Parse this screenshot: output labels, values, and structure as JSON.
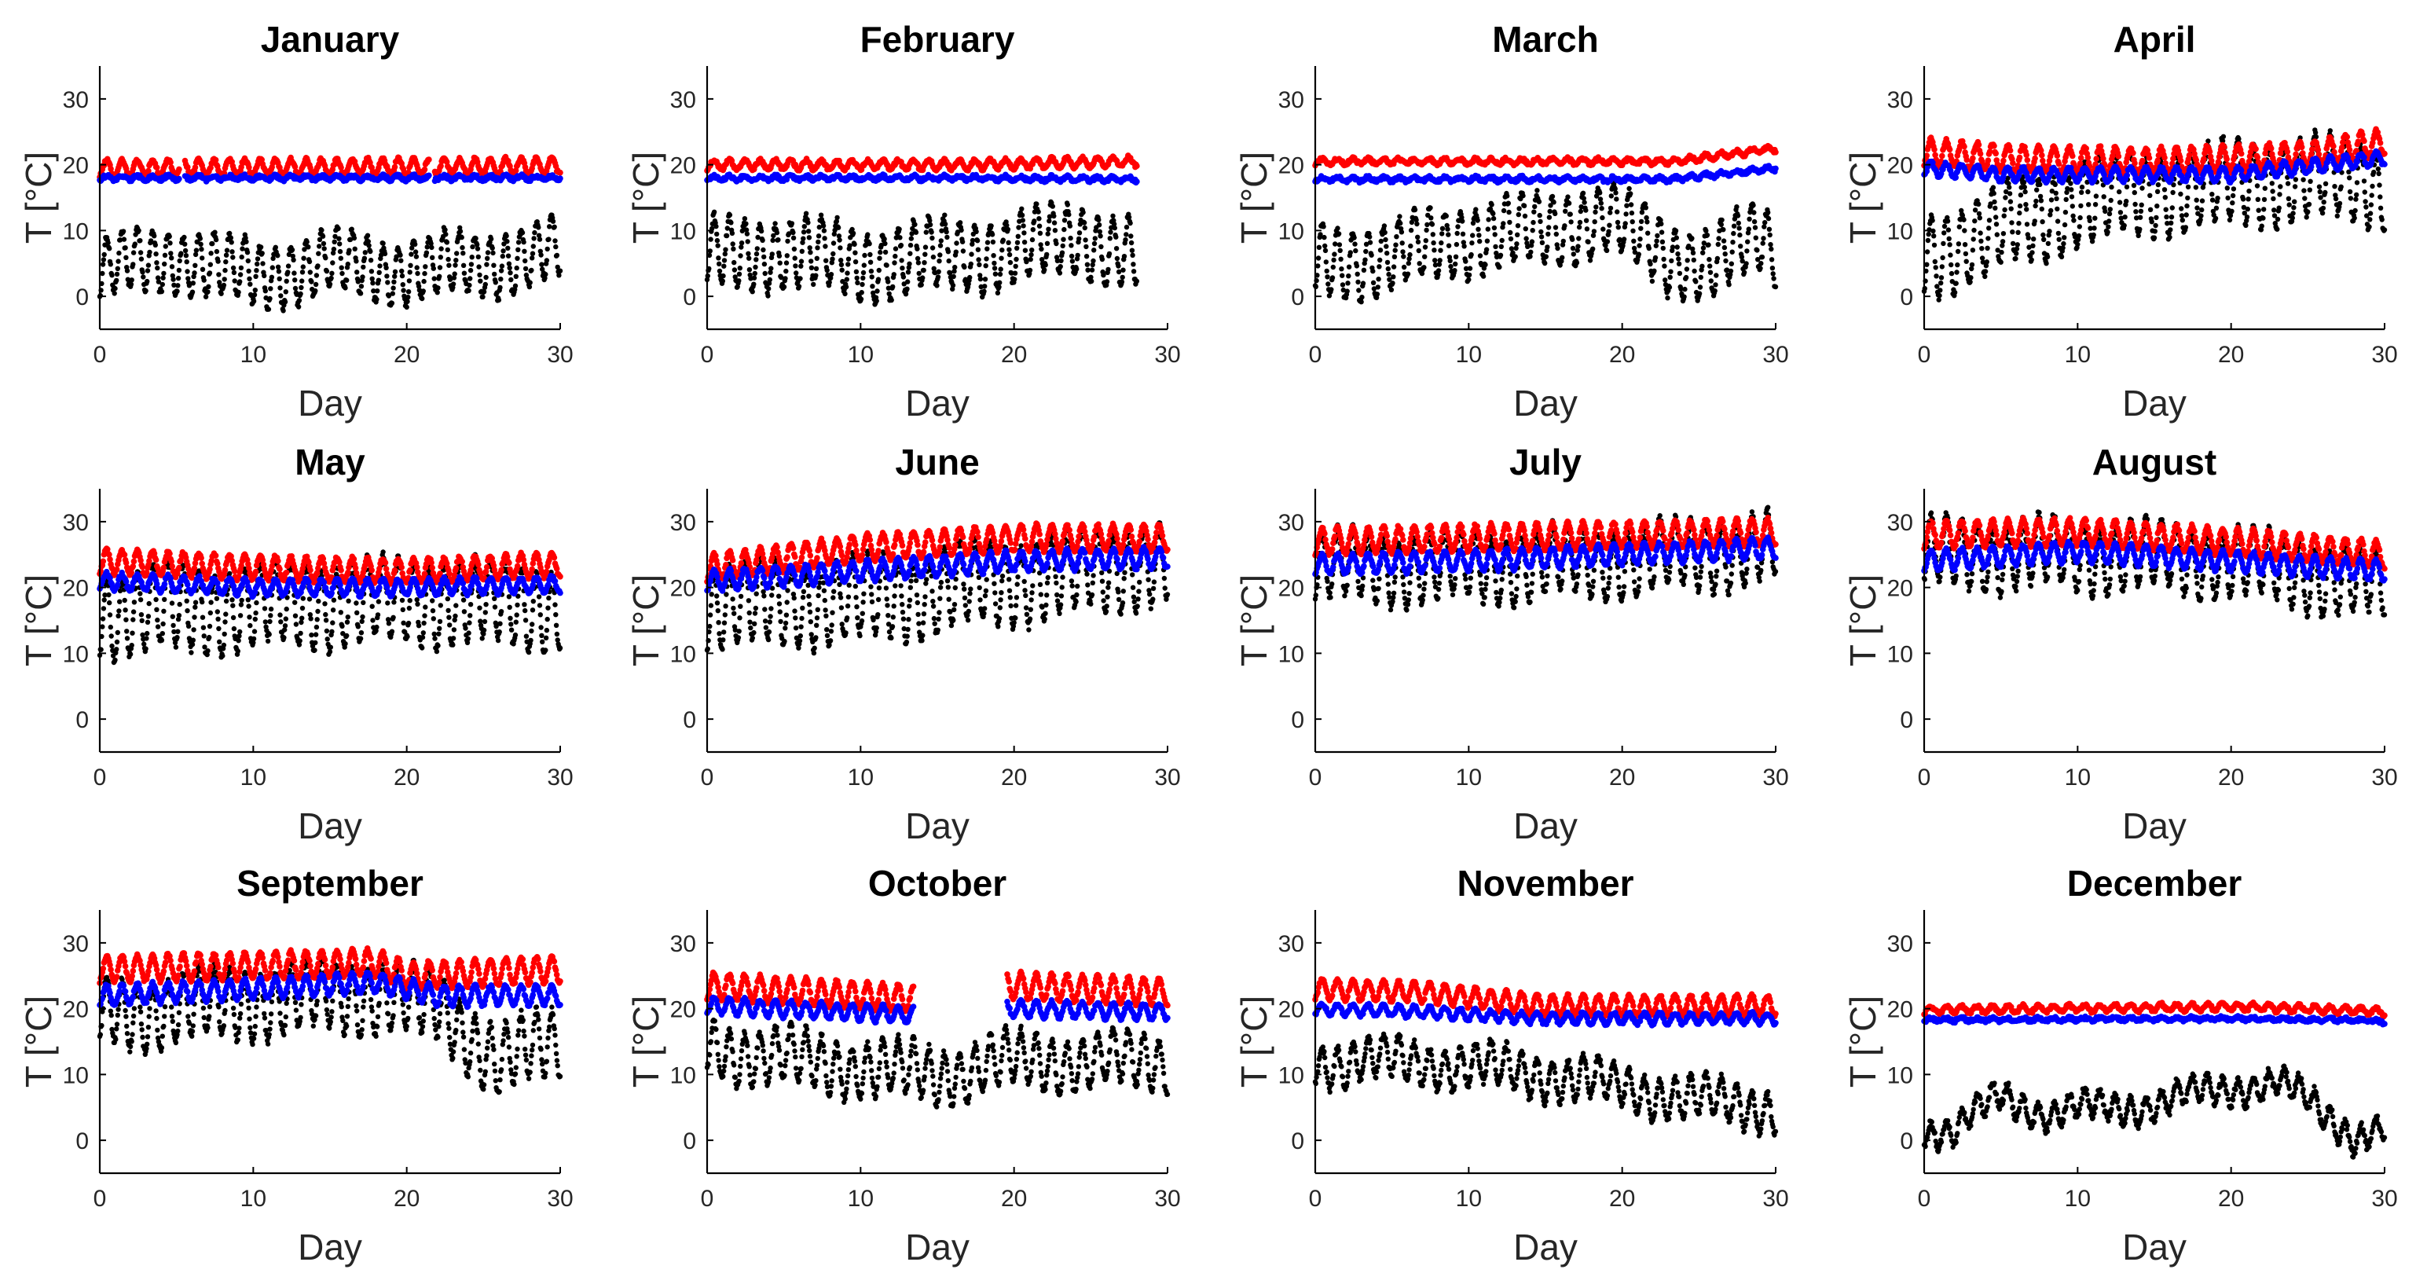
{
  "figure": {
    "layout": "3x4 grid of scatter subplots",
    "series_colors": {
      "upper_indoor": "#ff0000",
      "lower_indoor": "#0000ff",
      "outdoor": "#000000"
    }
  },
  "chart_data": [
    {
      "type": "scatter",
      "title": "January",
      "xlabel": "Day",
      "ylabel": "T [°C]",
      "xlim": [
        0,
        30
      ],
      "ylim": [
        -5,
        35
      ],
      "xticks": [
        0,
        10,
        20,
        30
      ],
      "yticks": [
        0,
        10,
        20,
        30
      ],
      "grid": false,
      "series": [
        {
          "color": "#ff0000",
          "trend": [
            [
              0,
              19.5
            ],
            [
              30,
              19.8
            ]
          ],
          "amp": 1.2,
          "gaps": [
            [
              5.2,
              5.5
            ],
            [
              21.5,
              21.8
            ]
          ]
        },
        {
          "color": "#0000ff",
          "trend": [
            [
              0,
              18.0
            ],
            [
              30,
              18.0
            ]
          ],
          "amp": 0.3,
          "gaps": [
            [
              5.2,
              5.5
            ],
            [
              21.5,
              21.8
            ]
          ]
        },
        {
          "color": "#000000",
          "trend": [
            [
              0,
              4
            ],
            [
              5,
              6
            ],
            [
              10,
              3
            ],
            [
              15,
              5
            ],
            [
              20,
              4
            ],
            [
              25,
              5
            ],
            [
              30,
              7
            ]
          ],
          "amp": 4.5
        }
      ]
    },
    {
      "type": "scatter",
      "title": "February",
      "xlabel": "Day",
      "ylabel": "T [°C]",
      "xlim": [
        0,
        30
      ],
      "ylim": [
        -5,
        35
      ],
      "xticks": [
        0,
        10,
        20,
        30
      ],
      "yticks": [
        0,
        10,
        20,
        30
      ],
      "grid": false,
      "series": [
        {
          "color": "#ff0000",
          "trend": [
            [
              0,
              20.0
            ],
            [
              16.5,
              20.0
            ],
            [
              28,
              20.5
            ]
          ],
          "amp": 0.7
        },
        {
          "color": "#0000ff",
          "trend": [
            [
              0,
              18.0
            ],
            [
              16.5,
              18.0
            ],
            [
              28,
              17.8
            ]
          ],
          "amp": 0.3
        },
        {
          "color": "#000000",
          "trend": [
            [
              0,
              6
            ],
            [
              5,
              7
            ],
            [
              10,
              5
            ],
            [
              15,
              6
            ],
            [
              20,
              7
            ],
            [
              24,
              9
            ],
            [
              28,
              6
            ]
          ],
          "amp": 5
        }
      ]
    },
    {
      "type": "scatter",
      "title": "March",
      "xlabel": "Day",
      "ylabel": "T [°C]",
      "xlim": [
        0,
        30
      ],
      "ylim": [
        -5,
        35
      ],
      "xticks": [
        0,
        10,
        20,
        30
      ],
      "yticks": [
        0,
        10,
        20,
        30
      ],
      "grid": false,
      "series": [
        {
          "color": "#ff0000",
          "trend": [
            [
              0,
              20.5
            ],
            [
              23.3,
              20.5
            ],
            [
              30,
              22.5
            ]
          ],
          "amp": 0.4
        },
        {
          "color": "#0000ff",
          "trend": [
            [
              0,
              17.8
            ],
            [
              23.3,
              17.8
            ],
            [
              30,
              19.5
            ]
          ],
          "amp": 0.3
        },
        {
          "color": "#000000",
          "trend": [
            [
              0,
              5
            ],
            [
              5,
              6
            ],
            [
              10,
              9
            ],
            [
              15,
              10
            ],
            [
              19,
              12
            ],
            [
              23,
              6
            ],
            [
              26,
              5
            ],
            [
              29,
              9
            ],
            [
              30,
              7
            ]
          ],
          "amp": 5
        }
      ]
    },
    {
      "type": "scatter",
      "title": "April",
      "xlabel": "Day",
      "ylabel": "T [°C]",
      "xlim": [
        0,
        30
      ],
      "ylim": [
        -5,
        35
      ],
      "xticks": [
        0,
        10,
        20,
        30
      ],
      "yticks": [
        0,
        10,
        20,
        30
      ],
      "grid": false,
      "series": [
        {
          "color": "#ff0000",
          "trend": [
            [
              0,
              22
            ],
            [
              5,
              21
            ],
            [
              15,
              20.5
            ],
            [
              25,
              21.5
            ],
            [
              30,
              23.5
            ]
          ],
          "amp": 2.0
        },
        {
          "color": "#0000ff",
          "trend": [
            [
              0,
              19.5
            ],
            [
              5,
              18.5
            ],
            [
              20,
              18.5
            ],
            [
              30,
              21
            ]
          ],
          "amp": 1.0
        },
        {
          "color": "#000000",
          "trend": [
            [
              0,
              6
            ],
            [
              5,
              10
            ],
            [
              10,
              14
            ],
            [
              15,
              16
            ],
            [
              20,
              17
            ],
            [
              25,
              18
            ],
            [
              30,
              17
            ]
          ],
          "amp": 6
        }
      ]
    },
    {
      "type": "scatter",
      "title": "May",
      "xlabel": "Day",
      "ylabel": "T [°C]",
      "xlim": [
        0,
        30
      ],
      "ylim": [
        -5,
        35
      ],
      "xticks": [
        0,
        10,
        20,
        30
      ],
      "yticks": [
        0,
        10,
        20,
        30
      ],
      "grid": false,
      "series": [
        {
          "color": "#ff0000",
          "trend": [
            [
              0,
              24
            ],
            [
              10,
              23
            ],
            [
              20,
              22.5
            ],
            [
              30,
              23.5
            ]
          ],
          "amp": 1.8
        },
        {
          "color": "#0000ff",
          "trend": [
            [
              0,
              21
            ],
            [
              10,
              20
            ],
            [
              20,
              20
            ],
            [
              30,
              20.5
            ]
          ],
          "amp": 1.2
        },
        {
          "color": "#000000",
          "trend": [
            [
              0,
              16
            ],
            [
              10,
              17
            ],
            [
              20,
              18
            ],
            [
              30,
              17
            ]
          ],
          "amp": 6
        }
      ]
    },
    {
      "type": "scatter",
      "title": "June",
      "xlabel": "Day",
      "ylabel": "T [°C]",
      "xlim": [
        0,
        30
      ],
      "ylim": [
        -5,
        35
      ],
      "xticks": [
        0,
        10,
        20,
        30
      ],
      "yticks": [
        0,
        10,
        20,
        30
      ],
      "grid": false,
      "series": [
        {
          "color": "#ff0000",
          "trend": [
            [
              0,
              23
            ],
            [
              10,
              26
            ],
            [
              20,
              27.5
            ],
            [
              30,
              27.5
            ]
          ],
          "amp": 2.0
        },
        {
          "color": "#0000ff",
          "trend": [
            [
              0,
              21
            ],
            [
              10,
              22.5
            ],
            [
              20,
              24
            ],
            [
              30,
              24.5
            ]
          ],
          "amp": 1.5
        },
        {
          "color": "#000000",
          "trend": [
            [
              0,
              17
            ],
            [
              10,
              18
            ],
            [
              20,
              21
            ],
            [
              30,
              24
            ]
          ],
          "amp": 6
        }
      ]
    },
    {
      "type": "scatter",
      "title": "July",
      "xlabel": "Day",
      "ylabel": "T [°C]",
      "xlim": [
        0,
        30
      ],
      "ylim": [
        -5,
        35
      ],
      "xticks": [
        0,
        10,
        20,
        30
      ],
      "yticks": [
        0,
        10,
        20,
        30
      ],
      "grid": false,
      "series": [
        {
          "color": "#ff0000",
          "trend": [
            [
              0,
              27
            ],
            [
              10,
              27.5
            ],
            [
              20,
              28
            ],
            [
              30,
              28.5
            ]
          ],
          "amp": 2.0
        },
        {
          "color": "#0000ff",
          "trend": [
            [
              0,
              23.5
            ],
            [
              10,
              24
            ],
            [
              20,
              25
            ],
            [
              30,
              26
            ]
          ],
          "amp": 1.5
        },
        {
          "color": "#000000",
          "trend": [
            [
              0,
              23
            ],
            [
              10,
              23
            ],
            [
              20,
              24
            ],
            [
              30,
              26
            ]
          ],
          "amp": 5
        }
      ]
    },
    {
      "type": "scatter",
      "title": "August",
      "xlabel": "Day",
      "ylabel": "T [°C]",
      "xlim": [
        0,
        30
      ],
      "ylim": [
        -5,
        35
      ],
      "xticks": [
        0,
        10,
        20,
        30
      ],
      "yticks": [
        0,
        10,
        20,
        30
      ],
      "grid": false,
      "series": [
        {
          "color": "#ff0000",
          "trend": [
            [
              0,
              28
            ],
            [
              10,
              28.5
            ],
            [
              20,
              27
            ],
            [
              30,
              25
            ]
          ],
          "amp": 2.0
        },
        {
          "color": "#0000ff",
          "trend": [
            [
              0,
              24
            ],
            [
              10,
              25.5
            ],
            [
              20,
              24
            ],
            [
              30,
              22.5
            ]
          ],
          "amp": 1.5
        },
        {
          "color": "#000000",
          "trend": [
            [
              0,
              25
            ],
            [
              10,
              25
            ],
            [
              20,
              24
            ],
            [
              30,
              20
            ]
          ],
          "amp": 5
        }
      ]
    },
    {
      "type": "scatter",
      "title": "September",
      "xlabel": "Day",
      "ylabel": "T [°C]",
      "xlim": [
        0,
        30
      ],
      "ylim": [
        -5,
        35
      ],
      "xticks": [
        0,
        10,
        20,
        30
      ],
      "yticks": [
        0,
        10,
        20,
        30
      ],
      "grid": false,
      "series": [
        {
          "color": "#ff0000",
          "trend": [
            [
              0,
              26
            ],
            [
              10,
              26.5
            ],
            [
              18,
              27
            ],
            [
              20,
              25
            ],
            [
              30,
              26
            ]
          ],
          "amp": 2.0
        },
        {
          "color": "#0000ff",
          "trend": [
            [
              0,
              22
            ],
            [
              10,
              23
            ],
            [
              18,
              24
            ],
            [
              22,
              22
            ],
            [
              30,
              22
            ]
          ],
          "amp": 1.5
        },
        {
          "color": "#000000",
          "trend": [
            [
              0,
              19
            ],
            [
              10,
              21
            ],
            [
              18,
              22
            ],
            [
              22,
              20
            ],
            [
              26,
              12
            ],
            [
              30,
              15
            ]
          ],
          "amp": 5
        }
      ]
    },
    {
      "type": "scatter",
      "title": "October",
      "xlabel": "Day",
      "ylabel": "T [°C]",
      "xlim": [
        0,
        30
      ],
      "ylim": [
        -5,
        35
      ],
      "xticks": [
        0,
        10,
        20,
        30
      ],
      "yticks": [
        0,
        10,
        20,
        30
      ],
      "grid": false,
      "series": [
        {
          "color": "#ff0000",
          "trend": [
            [
              0,
              23.5
            ],
            [
              13.5,
              21.5
            ],
            [
              19.5,
              23.5
            ],
            [
              30,
              22.5
            ]
          ],
          "amp": 2.0,
          "gaps": [
            [
              13.5,
              19.5
            ]
          ]
        },
        {
          "color": "#0000ff",
          "trend": [
            [
              0,
              20.5
            ],
            [
              13.5,
              19
            ],
            [
              19.5,
              20
            ],
            [
              30,
              19.5
            ]
          ],
          "amp": 1.2,
          "gaps": [
            [
              13.5,
              19.5
            ]
          ]
        },
        {
          "color": "#000000",
          "trend": [
            [
              0,
              14
            ],
            [
              10,
              11
            ],
            [
              15,
              10
            ],
            [
              20,
              12
            ],
            [
              30,
              12
            ]
          ],
          "amp": 4
        }
      ]
    },
    {
      "type": "scatter",
      "title": "November",
      "xlabel": "Day",
      "ylabel": "T [°C]",
      "xlim": [
        0,
        30
      ],
      "ylim": [
        -5,
        35
      ],
      "xticks": [
        0,
        10,
        20,
        30
      ],
      "yticks": [
        0,
        10,
        20,
        30
      ],
      "grid": false,
      "series": [
        {
          "color": "#ff0000",
          "trend": [
            [
              0,
              23
            ],
            [
              7,
              22.5
            ],
            [
              15,
              20.5
            ],
            [
              30,
              20.5
            ]
          ],
          "amp": 1.5
        },
        {
          "color": "#0000ff",
          "trend": [
            [
              0,
              20
            ],
            [
              7,
              19.5
            ],
            [
              15,
              18.5
            ],
            [
              30,
              18.5
            ]
          ],
          "amp": 0.8
        },
        {
          "color": "#000000",
          "trend": [
            [
              0,
              12
            ],
            [
              7,
              12
            ],
            [
              15,
              10
            ],
            [
              20,
              8
            ],
            [
              25,
              6
            ],
            [
              30,
              5
            ]
          ],
          "amp": 3
        }
      ]
    },
    {
      "type": "scatter",
      "title": "December",
      "xlabel": "Day",
      "ylabel": "T [°C]",
      "xlim": [
        0,
        30
      ],
      "ylim": [
        -5,
        35
      ],
      "xticks": [
        0,
        10,
        20,
        30
      ],
      "yticks": [
        0,
        10,
        20,
        30
      ],
      "grid": false,
      "series": [
        {
          "color": "#ff0000",
          "trend": [
            [
              0,
              19.8
            ],
            [
              20,
              20.3
            ],
            [
              27.5,
              19.8
            ],
            [
              30,
              19.5
            ]
          ],
          "amp": 0.5
        },
        {
          "color": "#0000ff",
          "trend": [
            [
              0,
              18.3
            ],
            [
              20,
              18.5
            ],
            [
              27.5,
              18.3
            ],
            [
              30,
              18
            ]
          ],
          "amp": 0.2
        },
        {
          "color": "#000000",
          "trend": [
            [
              0,
              2
            ],
            [
              2,
              1
            ],
            [
              5,
              7
            ],
            [
              8,
              4
            ],
            [
              12,
              5
            ],
            [
              16,
              6
            ],
            [
              20,
              8
            ],
            [
              23,
              9
            ],
            [
              26,
              4
            ],
            [
              28,
              1
            ],
            [
              30,
              2
            ]
          ],
          "amp": 2
        }
      ]
    }
  ]
}
